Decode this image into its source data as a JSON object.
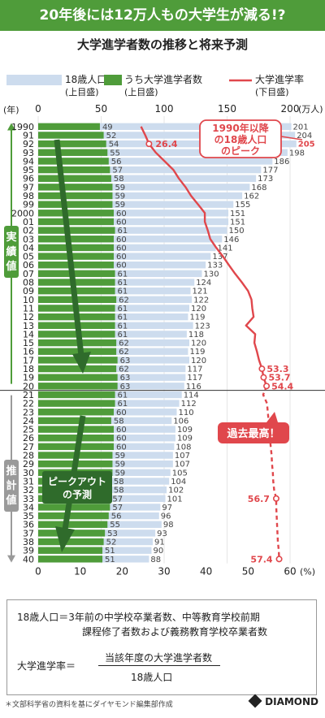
{
  "headline": "20年後には12万人もの大学生が減る!?",
  "brand": "DIAMOND",
  "source": "＊文部科学省の資料を基にダイヤモンド編集部作成",
  "definitions": {
    "line1": "18歳人口＝3年前の中学校卒業者数、中等教育学校前期",
    "line2": "課程修了者数および義務教育学校卒業者数",
    "formula_lhs": "大学進学率＝",
    "formula_numerator": "当該年度の大学進学者数",
    "formula_denominator": "18歳人口"
  },
  "colors": {
    "population": "#cddcee",
    "enrollment": "#4f9c3a",
    "rate": "#e0474c",
    "arrow": "#2f6b2b",
    "actual_band": "#4f9c3a",
    "forecast_band": "#9a9a9a"
  },
  "chart_data": {
    "type": "bar",
    "title": "大学進学者数の推移と将来予測",
    "legend": [
      {
        "label": "18歳人口",
        "sub": "(上目盛)"
      },
      {
        "label": "うち大学進学者数",
        "sub": "(上目盛)"
      },
      {
        "label": "大学進学率",
        "sub": "(下目盛)"
      }
    ],
    "year_axis_label": "(年)",
    "top_axis": {
      "ticks": [
        "0",
        "50",
        "100",
        "150",
        "200"
      ],
      "unit": "(万人)",
      "range": [
        0,
        200
      ]
    },
    "bottom_axis": {
      "ticks": [
        "0",
        "10",
        "20",
        "30",
        "40",
        "50",
        "60"
      ],
      "unit": "(%)",
      "range": [
        0,
        60
      ]
    },
    "categories": [
      "1990",
      "91",
      "92",
      "93",
      "94",
      "95",
      "96",
      "97",
      "98",
      "99",
      "2000",
      "01",
      "02",
      "03",
      "04",
      "05",
      "06",
      "07",
      "08",
      "09",
      "10",
      "11",
      "12",
      "13",
      "14",
      "15",
      "16",
      "17",
      "18",
      "19",
      "20",
      "21",
      "22",
      "23",
      "24",
      "25",
      "26",
      "27",
      "28",
      "29",
      "30",
      "31",
      "32",
      "33",
      "34",
      "35",
      "36",
      "37",
      "38",
      "39",
      "40"
    ],
    "series": [
      {
        "name": "18歳人口",
        "values": [
          201,
          204,
          205,
          198,
          186,
          177,
          173,
          168,
          162,
          155,
          151,
          151,
          150,
          146,
          141,
          137,
          133,
          130,
          124,
          121,
          122,
          120,
          119,
          123,
          118,
          120,
          119,
          120,
          117,
          117,
          116,
          114,
          112,
          110,
          106,
          109,
          109,
          108,
          107,
          107,
          105,
          104,
          102,
          101,
          97,
          96,
          98,
          93,
          91,
          90,
          88
        ]
      },
      {
        "name": "うち大学進学者数",
        "values": [
          49,
          52,
          54,
          55,
          56,
          57,
          58,
          59,
          59,
          59,
          60,
          60,
          61,
          60,
          60,
          60,
          60,
          61,
          61,
          61,
          62,
          61,
          61,
          61,
          61,
          62,
          62,
          63,
          62,
          63,
          63,
          61,
          61,
          60,
          58,
          60,
          60,
          60,
          59,
          59,
          59,
          58,
          58,
          57,
          57,
          56,
          55,
          53,
          52,
          51,
          51
        ]
      },
      {
        "name": "大学進学率",
        "values": [
          24.5,
          25.5,
          26.4,
          28.0,
          30.1,
          32.2,
          33.5,
          35.1,
          36.4,
          38.1,
          39.7,
          39.7,
          40.4,
          41.0,
          42.4,
          44.0,
          45.4,
          46.9,
          48.5,
          50.0,
          50.8,
          51.0,
          51.3,
          49.5,
          51.7,
          51.5,
          52.1,
          52.6,
          53.3,
          53.7,
          54.4,
          53.6,
          54.5,
          54.7,
          54.9,
          55.1,
          55.2,
          55.4,
          55.6,
          55.7,
          55.9,
          56.0,
          56.2,
          56.7,
          56.7,
          56.8,
          56.9,
          57.0,
          57.1,
          57.3,
          57.4
        ]
      }
    ],
    "rate_labels": [
      {
        "year": "92",
        "text": "26.4"
      },
      {
        "year": "18",
        "text": "53.3"
      },
      {
        "year": "19",
        "text": "53.7"
      },
      {
        "year": "20",
        "text": "54.4"
      },
      {
        "year": "33",
        "text": "56.7"
      },
      {
        "year": "40",
        "text": "57.4"
      }
    ],
    "highlight_population": {
      "year": "92",
      "text": "205"
    },
    "period_labels": {
      "actual": "実績値",
      "forecast": "推計値"
    },
    "annotations": {
      "peak": [
        "1990年以降",
        "の18歳人口",
        "のピーク"
      ],
      "record": "過去最高！",
      "peakout": [
        "ピークアウト",
        "の予測"
      ]
    }
  }
}
